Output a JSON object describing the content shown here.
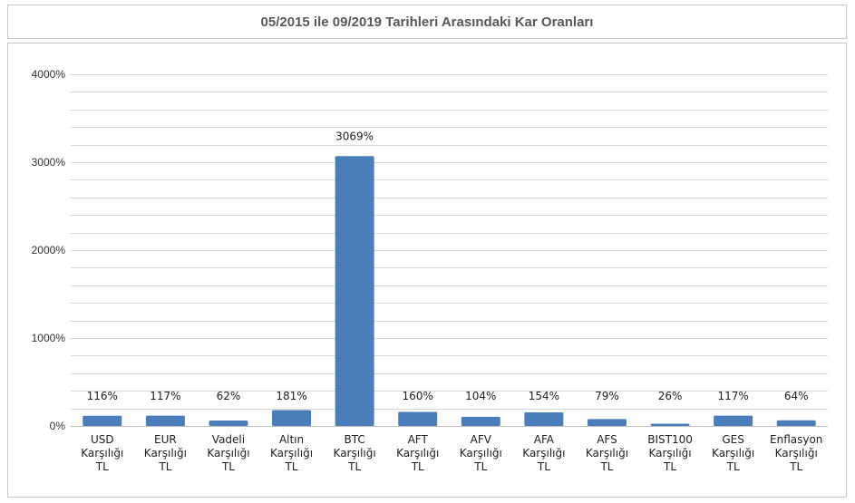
{
  "title": "05/2015 ile 09/2019 Tarihleri Arasındaki Kar Oranları",
  "colors": {
    "bar": "#4a7ebb",
    "grid": "#d9d9d9",
    "axis": "#bfbfbf"
  },
  "chart_data": {
    "type": "bar",
    "title": "05/2015 ile 09/2019 Tarihleri Arasındaki Kar Oranları",
    "categories": [
      [
        "USD",
        "Karşılığı",
        "TL"
      ],
      [
        "EUR",
        "Karşılığı",
        "TL"
      ],
      [
        "Vadeli",
        "Karşılığı",
        "TL"
      ],
      [
        "Altın",
        "Karşılığı",
        "TL"
      ],
      [
        "BTC",
        "Karşılığı",
        "TL"
      ],
      [
        "AFT",
        "Karşılığı",
        "TL"
      ],
      [
        "AFV",
        "Karşılığı",
        "TL"
      ],
      [
        "AFA",
        "Karşılığı",
        "TL"
      ],
      [
        "AFS",
        "Karşılığı",
        "TL"
      ],
      [
        "BIST100",
        "Karşılığı",
        "TL"
      ],
      [
        "GES",
        "Karşılığı",
        "TL"
      ],
      [
        "Enflasyon",
        "Karşılığı",
        "TL"
      ]
    ],
    "values": [
      116,
      117,
      62,
      181,
      3069,
      160,
      104,
      154,
      79,
      26,
      117,
      64
    ],
    "data_labels": [
      "116%",
      "117%",
      "62%",
      "181%",
      "3069%",
      "160%",
      "104%",
      "154%",
      "79%",
      "26%",
      "117%",
      "64%"
    ],
    "yticks": [
      0,
      1000,
      2000,
      3000,
      4000
    ],
    "ytick_labels": [
      "0%",
      "1000%",
      "2000%",
      "3000%",
      "4000%"
    ],
    "ylim": [
      0,
      4000
    ],
    "minor_grid_step": 200,
    "grid": true,
    "legend": "none",
    "xlabel": "",
    "ylabel": ""
  }
}
